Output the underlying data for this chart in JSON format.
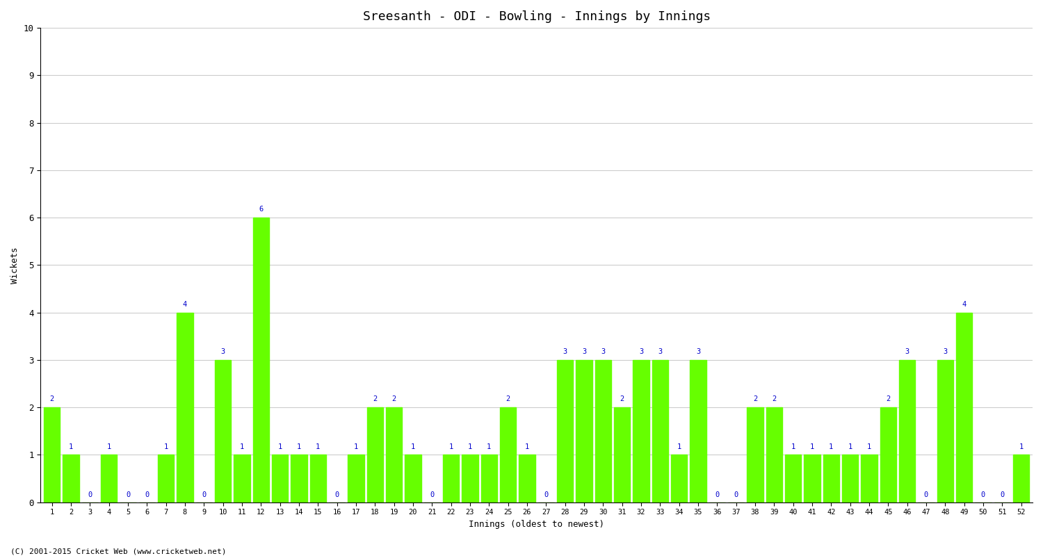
{
  "title": "Sreesanth - ODI - Bowling - Innings by Innings",
  "xlabel": "Innings (oldest to newest)",
  "ylabel": "Wickets",
  "ylim": [
    0,
    10
  ],
  "bar_color": "#66ff00",
  "label_color": "#0000cc",
  "background_color": "#ffffff",
  "grid_color": "#cccccc",
  "footer": "(C) 2001-2015 Cricket Web (www.cricketweb.net)",
  "innings": [
    1,
    2,
    3,
    4,
    5,
    6,
    7,
    8,
    9,
    10,
    11,
    12,
    13,
    14,
    15,
    16,
    17,
    18,
    19,
    20,
    21,
    22,
    23,
    24,
    25,
    26,
    27,
    28,
    29,
    30,
    31,
    32,
    33,
    34,
    35,
    36,
    37,
    38,
    39,
    40,
    41,
    42,
    43,
    44,
    45,
    46,
    47,
    48,
    49,
    50,
    51,
    52
  ],
  "wickets": [
    2,
    1,
    0,
    1,
    0,
    0,
    1,
    4,
    0,
    3,
    1,
    6,
    1,
    1,
    1,
    0,
    1,
    2,
    2,
    1,
    0,
    1,
    1,
    1,
    2,
    1,
    0,
    3,
    3,
    3,
    2,
    3,
    3,
    1,
    3,
    0,
    0,
    2,
    2,
    1,
    1,
    1,
    1,
    1,
    2,
    3,
    0,
    3,
    4,
    0,
    0,
    1
  ]
}
